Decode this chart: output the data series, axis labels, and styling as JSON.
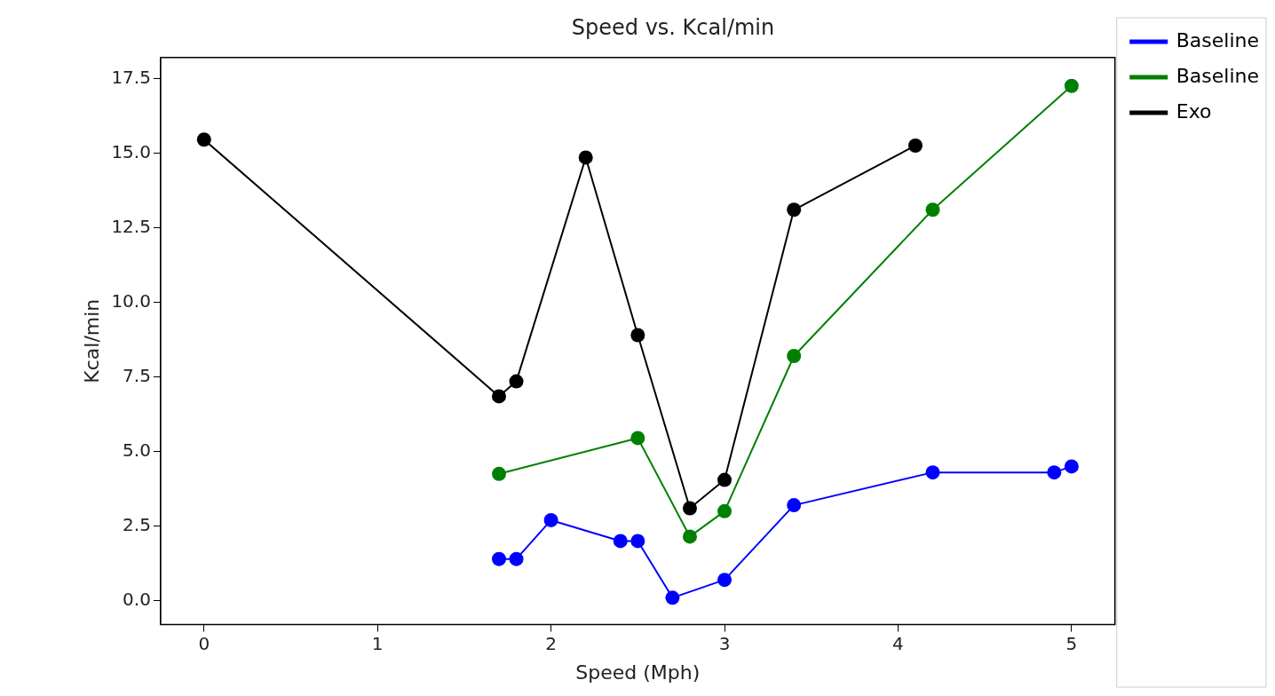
{
  "chart_data": {
    "type": "line",
    "title": "Speed vs. Kcal/min",
    "xlabel": "Speed (Mph)",
    "ylabel": "Kcal/min",
    "xlim": [
      -0.25,
      5.25
    ],
    "xticks": [
      0,
      1,
      2,
      3,
      4,
      5
    ],
    "ylim": [
      -0.8,
      18.2
    ],
    "yticks": [
      {
        "value": 0,
        "label": "0.0"
      },
      2.5,
      {
        "value": 5,
        "label": "5.0"
      },
      7.5,
      {
        "value": 10,
        "label": "10.0"
      },
      12.5,
      {
        "value": 15,
        "label": "15.0"
      },
      17.5
    ],
    "grid": false,
    "legend": "top right",
    "marker": "circle",
    "line_style": "solid",
    "series": [
      {
        "name": "Baseline",
        "color": "#0000ff",
        "x": [
          1.7,
          1.8,
          2.0,
          2.4,
          2.5,
          2.7,
          3.0,
          3.4,
          4.2,
          4.9,
          5.0
        ],
        "values": [
          1.4,
          1.4,
          2.7,
          2.0,
          2.0,
          0.1,
          0.7,
          3.2,
          4.3,
          4.3,
          4.5
        ]
      },
      {
        "name": "Baseline",
        "color": "#008000",
        "x": [
          1.7,
          2.5,
          2.8,
          3.0,
          3.4,
          4.2,
          5.0
        ],
        "values": [
          4.25,
          5.45,
          2.15,
          3.0,
          8.2,
          13.1,
          17.25
        ]
      },
      {
        "name": "Exo",
        "color": "#000000",
        "x": [
          0,
          1.7,
          1.8,
          2.2,
          2.5,
          2.8,
          3.0,
          3.4,
          4.1
        ],
        "values": [
          15.45,
          6.85,
          7.35,
          14.85,
          8.9,
          3.1,
          4.05,
          13.1,
          15.25
        ]
      }
    ]
  }
}
